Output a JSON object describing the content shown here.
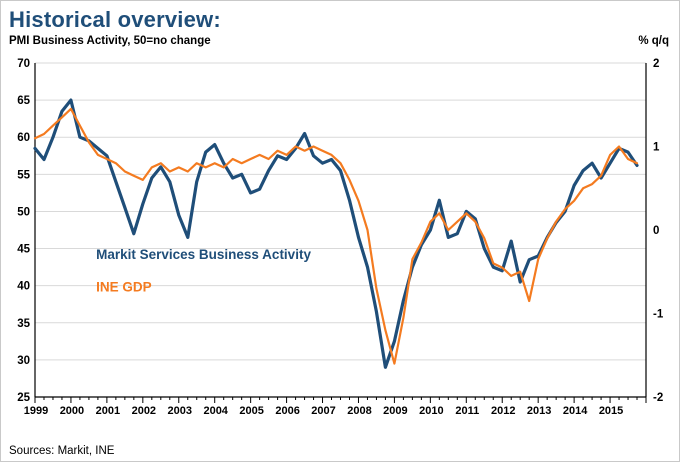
{
  "title": "Historical overview:",
  "left_caption": "PMI Business Activity, 50=no change",
  "right_caption": "% q/q",
  "source": "Sources: Markit, INE",
  "colors": {
    "title": "#1f4e79",
    "pmi_line": "#1f4e79",
    "gdp_line": "#f47b20",
    "grid": "#d9d9d9",
    "axis": "#000000",
    "text": "#000000"
  },
  "chart_data": {
    "type": "line",
    "title": "Historical overview:",
    "subtitle_left": "PMI Business Activity, 50=no change",
    "subtitle_right": "% q/q",
    "x_start": 1999,
    "x_step": 0.25,
    "x_end": 2016,
    "x_tick_labels": [
      "1999",
      "2000",
      "2001",
      "2002",
      "2003",
      "2004",
      "2005",
      "2006",
      "2007",
      "2008",
      "2009",
      "2010",
      "2011",
      "2012",
      "2013",
      "2014",
      "2015"
    ],
    "left_axis": {
      "min": 25,
      "max": 70,
      "step": 5,
      "ticks": [
        25,
        30,
        35,
        40,
        45,
        50,
        55,
        60,
        65,
        70
      ]
    },
    "right_axis": {
      "min": -2,
      "max": 2,
      "step": 1,
      "ticks": [
        -2,
        -1,
        0,
        1,
        2
      ]
    },
    "grid": true,
    "series": [
      {
        "name": "Markit Services Business Activity",
        "axis": "left",
        "color_key": "pmi_line",
        "values": [
          58.5,
          57,
          60,
          63.5,
          65,
          60,
          59.5,
          58.5,
          57.5,
          54,
          50.5,
          47,
          51,
          54.5,
          56,
          54,
          49.5,
          46.5,
          54,
          58,
          59,
          56.5,
          54.5,
          55,
          52.5,
          53,
          55.5,
          57.5,
          57,
          58.5,
          60.5,
          57.5,
          56.5,
          57,
          55.5,
          51.5,
          46.5,
          42.5,
          36.5,
          29,
          32.5,
          38,
          42.5,
          45.5,
          47.5,
          51.5,
          46.5,
          47,
          50,
          49,
          45,
          42.5,
          42,
          46,
          40.5,
          43.5,
          44,
          46.5,
          48.5,
          50,
          53.5,
          55.5,
          56.5,
          54.5,
          56.5,
          58.5,
          58,
          56.2
        ]
      },
      {
        "name": "INE GDP",
        "axis": "right",
        "color_key": "gdp_line",
        "values": [
          1.1,
          1.15,
          1.25,
          1.35,
          1.45,
          1.25,
          1.05,
          0.9,
          0.85,
          0.8,
          0.7,
          0.65,
          0.6,
          0.75,
          0.8,
          0.7,
          0.75,
          0.7,
          0.8,
          0.75,
          0.8,
          0.75,
          0.85,
          0.8,
          0.85,
          0.9,
          0.85,
          0.95,
          0.9,
          1.0,
          0.95,
          1.0,
          0.95,
          0.9,
          0.8,
          0.6,
          0.35,
          0.0,
          -0.7,
          -1.2,
          -1.6,
          -1.05,
          -0.35,
          -0.15,
          0.1,
          0.2,
          0.0,
          0.1,
          0.2,
          0.1,
          -0.1,
          -0.4,
          -0.45,
          -0.55,
          -0.5,
          -0.85,
          -0.35,
          -0.1,
          0.1,
          0.25,
          0.35,
          0.5,
          0.55,
          0.65,
          0.9,
          1.0,
          0.85,
          0.8
        ]
      }
    ],
    "inline_labels": [
      {
        "text": "Markit Services Business Activity",
        "x": 2000.7,
        "y_left": 43.6,
        "color_key": "pmi_line"
      },
      {
        "text": "INE GDP",
        "x": 2000.7,
        "y_left": 39.2,
        "color_key": "gdp_line"
      }
    ],
    "legend_position": "inside-left",
    "line_widths": {
      "pmi_line": 3.2,
      "gdp_line": 2.2
    }
  }
}
